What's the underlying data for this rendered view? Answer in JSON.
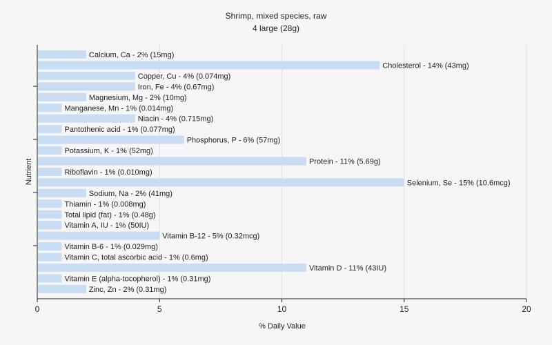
{
  "chart_data": {
    "type": "bar",
    "orientation": "horizontal",
    "title": "Shrimp, mixed species, raw",
    "subtitle": "4 large (28g)",
    "xlabel": "% Daily Value",
    "ylabel": "Nutrient",
    "xlim": [
      0,
      20
    ],
    "xticks": [
      "0",
      "5",
      "10",
      "15",
      "20"
    ],
    "xtick_values": [
      0,
      5,
      10,
      15,
      20
    ],
    "grid": true,
    "bar_color": "#c8dcf4",
    "background": "#f6f6f6",
    "categories": [
      "Calcium, Ca",
      "Cholesterol",
      "Copper, Cu",
      "Iron, Fe",
      "Magnesium, Mg",
      "Manganese, Mn",
      "Niacin",
      "Pantothenic acid",
      "Phosphorus, P",
      "Potassium, K",
      "Protein",
      "Riboflavin",
      "Selenium, Se",
      "Sodium, Na",
      "Thiamin",
      "Total lipid (fat)",
      "Vitamin A, IU",
      "Vitamin B-12",
      "Vitamin B-6",
      "Vitamin C, total ascorbic acid",
      "Vitamin D",
      "Vitamin E (alpha-tocopherol)",
      "Zinc, Zn"
    ],
    "values": [
      2,
      14,
      4,
      4,
      2,
      1,
      4,
      1,
      6,
      1,
      11,
      1,
      15,
      2,
      1,
      1,
      1,
      5,
      1,
      1,
      11,
      1,
      2
    ],
    "labels": [
      "Calcium, Ca - 2% (15mg)",
      "Cholesterol - 14% (43mg)",
      "Copper, Cu - 4% (0.074mg)",
      "Iron, Fe - 4% (0.67mg)",
      "Magnesium, Mg - 2% (10mg)",
      "Manganese, Mn - 1% (0.014mg)",
      "Niacin - 4% (0.715mg)",
      "Pantothenic acid - 1% (0.077mg)",
      "Phosphorus, P - 6% (57mg)",
      "Potassium, K - 1% (52mg)",
      "Protein - 11% (5.69g)",
      "Riboflavin - 1% (0.010mg)",
      "Selenium, Se - 15% (10.6mcg)",
      "Sodium, Na - 2% (41mg)",
      "Thiamin - 1% (0.008mg)",
      "Total lipid (fat) - 1% (0.48g)",
      "Vitamin A, IU - 1% (50IU)",
      "Vitamin B-12 - 5% (0.32mcg)",
      "Vitamin B-6 - 1% (0.029mg)",
      "Vitamin C, total ascorbic acid - 1% (0.6mg)",
      "Vitamin D - 11% (43IU)",
      "Vitamin E (alpha-tocopherol) - 1% (0.31mg)",
      "Zinc, Zn - 2% (0.31mg)"
    ]
  }
}
